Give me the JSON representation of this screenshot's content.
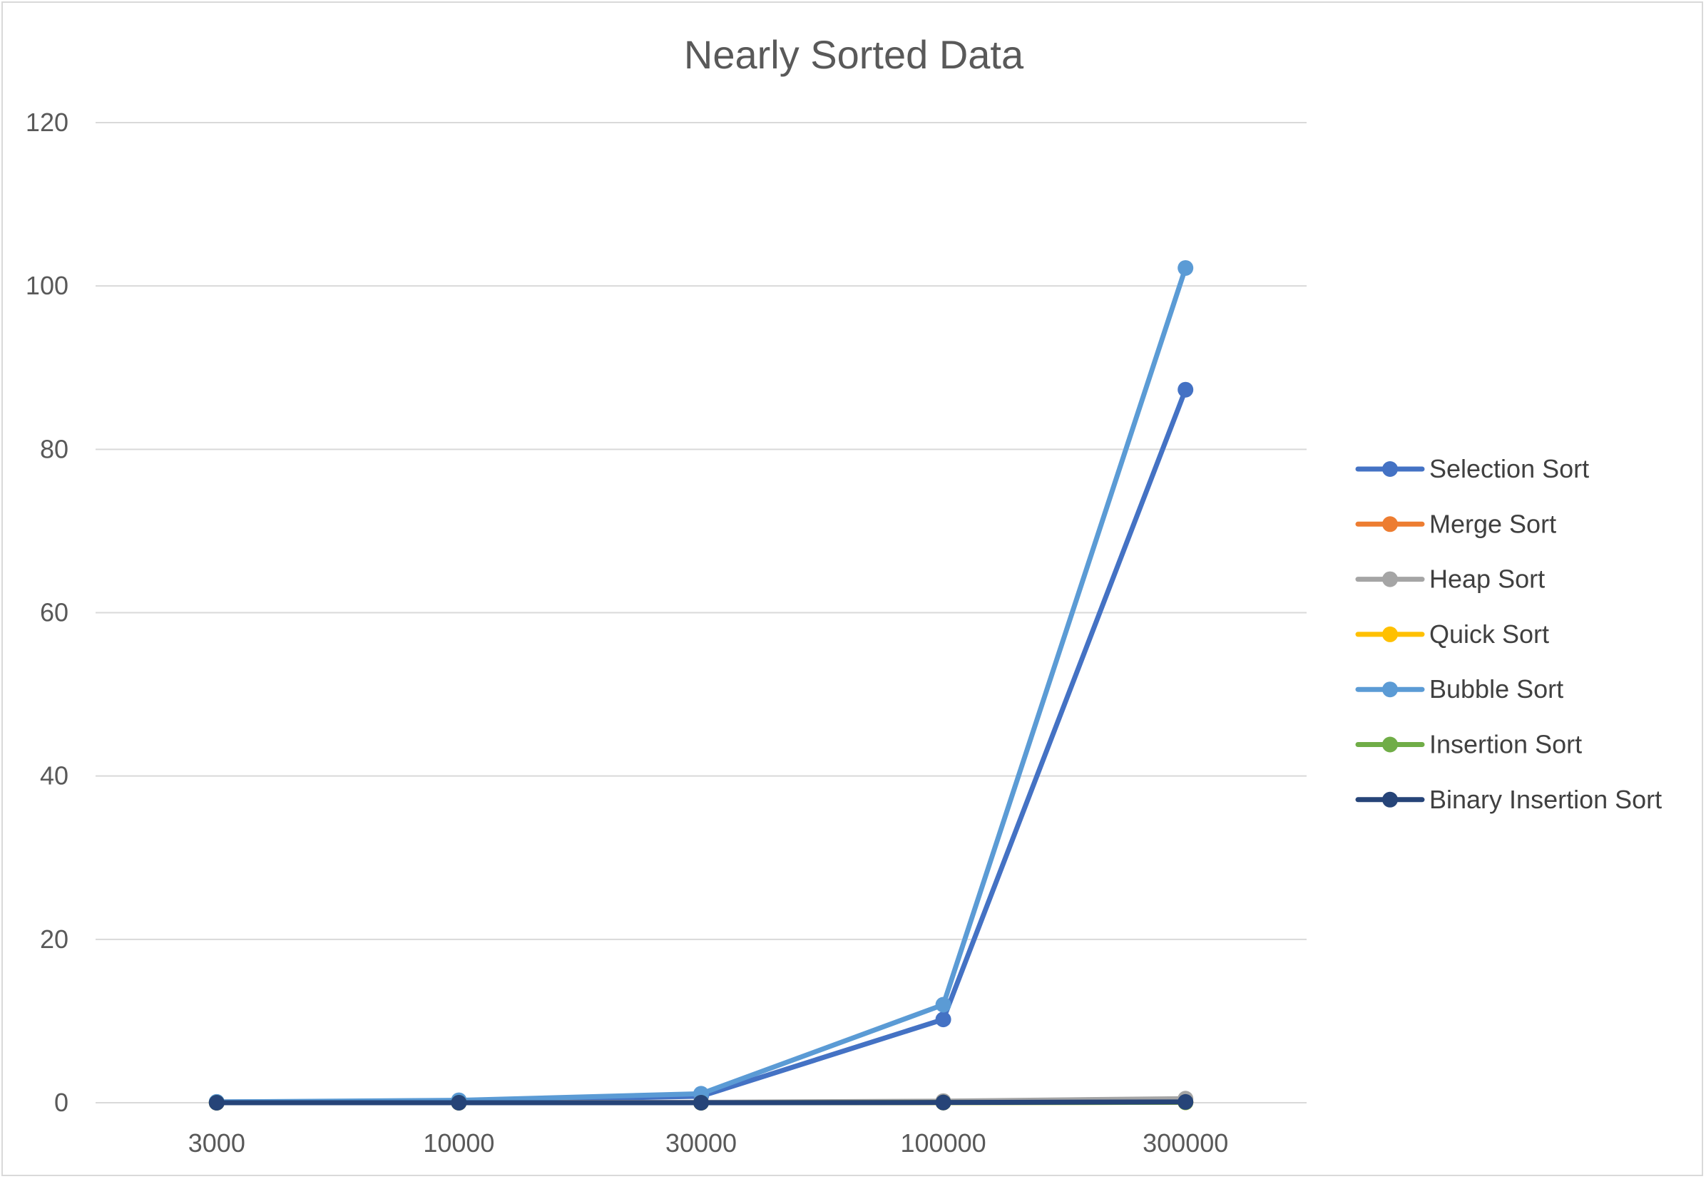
{
  "chart_data": {
    "type": "line",
    "title": "Nearly Sorted Data",
    "xlabel": "",
    "ylabel": "",
    "categories": [
      "3000",
      "10000",
      "30000",
      "100000",
      "300000"
    ],
    "ylim": [
      0,
      120
    ],
    "yticks": [
      0,
      20,
      40,
      60,
      80,
      100,
      120
    ],
    "grid": true,
    "legend_position": "right",
    "series": [
      {
        "name": "Selection Sort",
        "color": "#4472c4",
        "values": [
          0.1,
          0.2,
          0.8,
          10.2,
          87.3
        ]
      },
      {
        "name": "Merge Sort",
        "color": "#ed7d31",
        "values": [
          0.0,
          0.0,
          0.0,
          0.03,
          0.08
        ]
      },
      {
        "name": "Heap Sort",
        "color": "#a5a5a5",
        "values": [
          0.0,
          0.02,
          0.05,
          0.2,
          0.5
        ]
      },
      {
        "name": "Quick Sort",
        "color": "#ffc000",
        "values": [
          0.0,
          0.0,
          0.0,
          0.02,
          0.05
        ]
      },
      {
        "name": "Bubble Sort",
        "color": "#5b9bd5",
        "values": [
          0.1,
          0.3,
          1.1,
          12.0,
          102.2
        ]
      },
      {
        "name": "Insertion Sort",
        "color": "#70ad47",
        "values": [
          0.0,
          0.0,
          0.0,
          0.02,
          0.05
        ]
      },
      {
        "name": "Binary Insertion Sort",
        "color": "#264478",
        "values": [
          0.0,
          0.0,
          0.0,
          0.03,
          0.1
        ]
      }
    ]
  }
}
